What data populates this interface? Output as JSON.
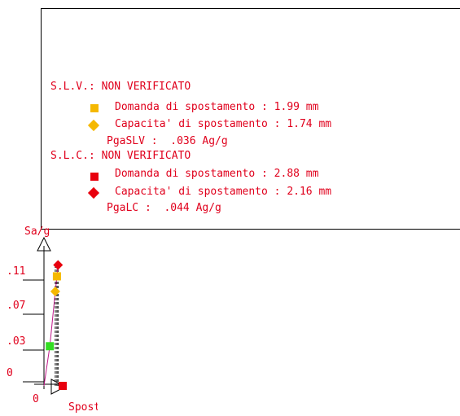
{
  "colors": {
    "text": "#e0001c",
    "slv": "#f5b800",
    "slc": "#e8000e",
    "start": "#33dd22"
  },
  "panel": {
    "slv_header": "S.L.V.: NON VERIFICATO",
    "slv_demand": "Domanda di spostamento : 1.99 mm",
    "slv_capacity": "Capacita' di spostamento : 1.74 mm",
    "slv_pga": "PgaSLV :  .036 Ag/g",
    "slc_header": "S.L.C.: NON VERIFICATO",
    "slc_demand": "Domanda di spostamento : 2.88 mm",
    "slc_capacity": "Capacita' di spostamento : 2.16 mm",
    "slc_pga": "PgaLC :  .044 Ag/g"
  },
  "chart_data": {
    "type": "scatter",
    "xlabel": "Spost (mm)",
    "ylabel": "Sa/g",
    "x_ticks": [
      "0"
    ],
    "y_ticks": [
      "0",
      ".03",
      ".07",
      ".11"
    ],
    "ylim": [
      0,
      0.15
    ],
    "series": [
      {
        "marker": "square",
        "color": "#33dd22",
        "x": 0.9,
        "y": 0.042
      },
      {
        "marker": "diamond",
        "color": "#f5b800",
        "x": 1.74,
        "y": 0.1
      },
      {
        "marker": "square",
        "color": "#f5b800",
        "x": 1.99,
        "y": 0.116
      },
      {
        "marker": "diamond",
        "color": "#e8000e",
        "x": 2.16,
        "y": 0.128
      },
      {
        "marker": "square",
        "color": "#e8000e",
        "x": 2.88,
        "y": 0
      }
    ],
    "curve": [
      [
        0,
        0
      ],
      [
        0.9,
        0.042
      ],
      [
        1.74,
        0.1
      ],
      [
        1.99,
        0.116
      ],
      [
        2.16,
        0.128
      ]
    ],
    "dashed_verticals_x": [
      1.74,
      1.99,
      2.16
    ]
  }
}
